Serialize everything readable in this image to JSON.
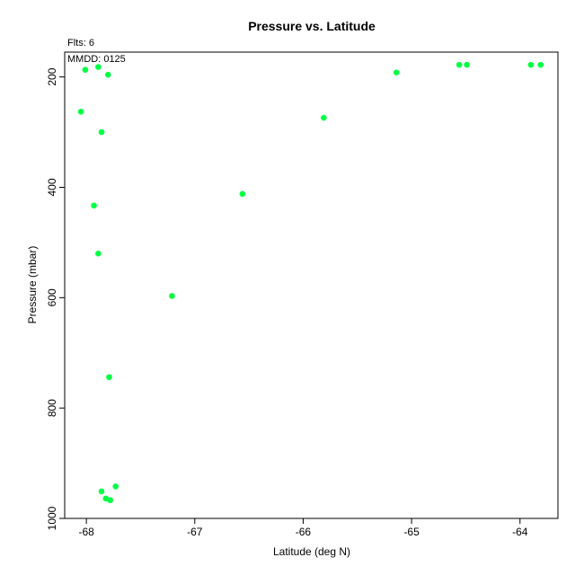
{
  "chart_data": {
    "type": "scatter",
    "title": "Pressure vs. Latitude",
    "xlabel": "Latitude (deg N)",
    "ylabel": "Pressure (mbar)",
    "annotations": {
      "flts": "Flts: 6",
      "mmdd": "MMDD: 0125"
    },
    "xlim": [
      -68.2,
      -63.65
    ],
    "ylim": [
      1000,
      155
    ],
    "y_inverted": true,
    "grid": false,
    "legend": "none",
    "x_ticks": [
      -68,
      -67,
      -66,
      -65,
      -64
    ],
    "x_tick_labels": [
      "-68",
      "-67",
      "-66",
      "-65",
      "-64"
    ],
    "y_ticks": [
      200,
      400,
      600,
      800,
      1000
    ],
    "y_tick_labels": [
      "200",
      "400",
      "600",
      "800",
      "1000"
    ],
    "point_color": "#00ff44",
    "points": [
      {
        "x": -68.05,
        "y": 263
      },
      {
        "x": -68.01,
        "y": 187
      },
      {
        "x": -67.89,
        "y": 182
      },
      {
        "x": -67.8,
        "y": 196
      },
      {
        "x": -67.86,
        "y": 300
      },
      {
        "x": -67.93,
        "y": 433
      },
      {
        "x": -67.89,
        "y": 520
      },
      {
        "x": -67.79,
        "y": 744
      },
      {
        "x": -67.73,
        "y": 942
      },
      {
        "x": -67.86,
        "y": 951
      },
      {
        "x": -67.82,
        "y": 964
      },
      {
        "x": -67.78,
        "y": 967
      },
      {
        "x": -67.21,
        "y": 597
      },
      {
        "x": -66.56,
        "y": 412
      },
      {
        "x": -65.81,
        "y": 274
      },
      {
        "x": -65.14,
        "y": 192
      },
      {
        "x": -64.56,
        "y": 178
      },
      {
        "x": -64.49,
        "y": 178
      },
      {
        "x": -63.9,
        "y": 178
      },
      {
        "x": -63.81,
        "y": 178
      }
    ]
  }
}
